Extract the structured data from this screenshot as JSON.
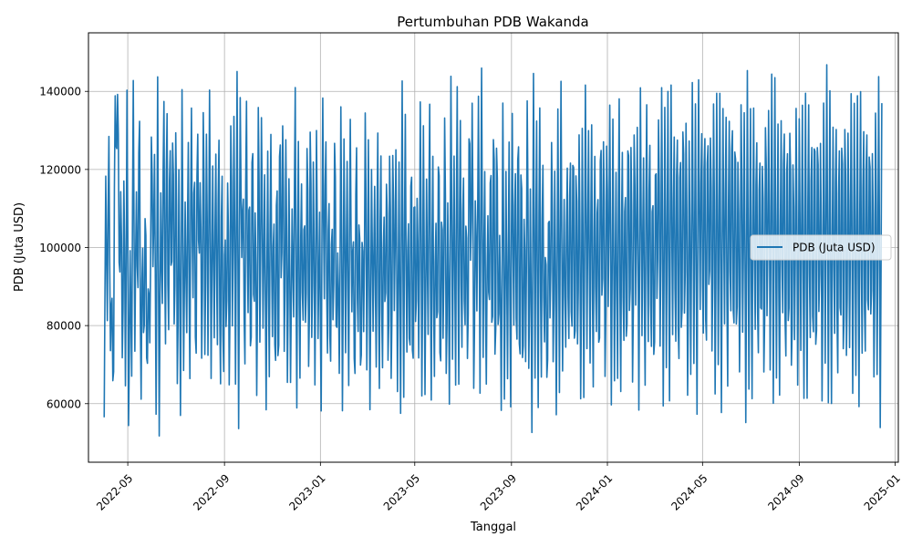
{
  "chart_data": {
    "type": "line",
    "title": "Pertumbuhan PDB Wakanda",
    "xlabel": "Tanggal",
    "ylabel": "PDB (Juta USD)",
    "x_range": [
      "2022-04-01",
      "2024-12-15"
    ],
    "xlim": [
      "2022-03-12",
      "2025-01-05"
    ],
    "ylim": [
      45000,
      155000
    ],
    "grid": true,
    "legend_position": "right",
    "x_ticks": [
      "2022-05",
      "2022-09",
      "2023-01",
      "2023-05",
      "2023-09",
      "2024-01",
      "2024-05",
      "2024-09",
      "2025-01"
    ],
    "y_ticks": [
      "60000",
      "80000",
      "100000",
      "120000",
      "140000"
    ],
    "series": [
      {
        "name": "PDB (Juta USD)",
        "color": "#1f77b4",
        "frequency": "daily",
        "start": "2022-04-01",
        "values": [
          56500,
          119500,
          78000,
          134000,
          71000,
          93000,
          52000,
          144000,
          119000,
          146000,
          82000,
          122000,
          62000,
          125500,
          57500,
          147000,
          50000,
          100000,
          66000,
          146000,
          70000,
          118000,
          81000,
          148000,
          50000,
          109000,
          67000,
          120000,
          59000,
          96000,
          72000,
          136000,
          91000,
          126000,
          55000,
          144000,
          50000,
          116000,
          80000,
          147000,
          63000,
          149000,
          64000,
          138000,
          81000,
          140000,
          66000,
          142000,
          53000,
          128000,
          51000,
          145000,
          67000,
          112000,
          76000,
          132000,
          58000,
          144000,
          79000,
          131000,
          54000,
          142000,
          89000,
          124000,
          60000,
          148000,
          62000,
          136000,
          68000,
          143000,
          66000,
          122000,
          74000,
          129000,
          67000,
          140000,
          51000,
          134000,
          55000,
          113000,
          70000,
          128000,
          52000,
          144000,
          72000,
          139000,
          61000,
          147000,
          53000,
          140000,
          96000,
          118000,
          59000,
          149000,
          74000,
          125000,
          56000,
          143000,
          73000,
          117000,
          52000,
          148000,
          68000,
          138000,
          77000,
          119000,
          57000,
          128000,
          61000,
          136000,
          71000,
          116000,
          56000,
          133000,
          51000,
          145000,
          79000,
          142000,
          62000,
          136000,
          59000,
          121000,
          64000,
          110000,
          80000,
          147000,
          51000,
          137000,
          56000,
          126000,
          72000,
          117000,
          69000,
          141000,
          53000,
          144000,
          67000,
          128000,
          60000,
          133000,
          76000,
          110000,
          54000,
          143000,
          81000,
          137000,
          63000,
          124000,
          58000,
          116000,
          71000,
          141000,
          67000,
          104000,
          63000,
          143000,
          53000,
          130000,
          73000,
          124000,
          60000,
          138000,
          80000,
          110000,
          52000,
          141000,
          66000,
          119000,
          56000,
          112000,
          72000,
          144000,
          60000,
          133000,
          55000,
          121000,
          78000,
          118000,
          64000,
          138000,
          53000,
          136000,
          58000,
          117000,
          75000,
          129000,
          56000,
          138000,
          54000,
          133000,
          79000,
          128000,
          61000,
          122000,
          55000,
          148000,
          54000,
          143000,
          66000,
          116000,
          59000,
          138000,
          52000,
          127000,
          70000,
          121000,
          64000,
          146000,
          55000,
          135000,
          61000,
          118000,
          75000,
          143000,
          53000,
          133000,
          58000,
          115000,
          68000,
          140000,
          52000,
          121000,
          67000,
          145000,
          57000,
          117000,
          56000,
          147000,
          71000,
          125000,
          60000,
          149000,
          55000,
          144000,
          63000,
          130000,
          69000,
          118000,
          58000,
          145000,
          87000,
          145000,
          54000,
          117000,
          82000,
          140000,
          62000,
          149000,
          68000,
          126000,
          58000,
          114000,
          76000,
          134000,
          61000,
          149000,
          52000,
          142000,
          69000,
          108000,
          53000,
          143000,
          58000,
          120000,
          65000,
          131000,
          52000,
          142000,
          72000,
          131000,
          59000,
          148000,
          50000,
          139000,
          55000,
          118000,
          63000,
          147000,
          62000,
          118000,
          51000,
          145000,
          64000,
          138000,
          50000,
          147000,
          55000,
          133000,
          67000,
          109000,
          53000,
          121000,
          73000,
          137000,
          61000,
          126000,
          52000,
          139000,
          62000,
          144000,
          66000,
          116000,
          68000,
          129000,
          65000,
          136000,
          62000,
          142000,
          57000,
          134000,
          63000,
          140000,
          51000,
          138000,
          57000,
          144000,
          74000,
          132000,
          66000,
          139000,
          55000,
          133000,
          68000,
          127000,
          56000,
          144000,
          72000,
          140000,
          53000,
          137000,
          79000,
          141000,
          56000,
          134000,
          65000,
          122000,
          60000,
          148000,
          52000,
          136000,
          64000,
          128000,
          59000,
          145000,
          68000,
          138000,
          53000,
          139000,
          80000,
          134000,
          56000,
          141000,
          76000,
          127000,
          57000,
          146000,
          65000,
          140000,
          61000,
          128000,
          54000,
          137000,
          75000,
          144000,
          64000,
          150000,
          52000,
          140000,
          68000,
          141000,
          57000,
          147000,
          71000,
          138000,
          63000,
          145000,
          52000,
          142000,
          60000,
          148000,
          69000,
          143000,
          51000,
          135000,
          63000,
          145000,
          70000,
          139000,
          52000,
          149000,
          77000,
          140000,
          64000,
          146000,
          56000,
          144000,
          75000,
          141000,
          60000,
          149000,
          52000,
          147000,
          66000,
          141000,
          57000,
          138000,
          76000,
          142000,
          53000,
          144000,
          69000,
          149000,
          60000,
          145000,
          63000,
          135000,
          56000,
          148000,
          71000,
          139000,
          52000,
          146000,
          62000,
          140000,
          54000,
          144000,
          69000,
          141000,
          57000,
          138000,
          66000,
          137000,
          51000,
          147000,
          72000,
          143000,
          62000,
          149000,
          58000,
          144000,
          64000,
          137000,
          54000,
          141000,
          72000,
          146000,
          53000,
          144000,
          61000,
          148000,
          52000,
          134000,
          68000,
          143000,
          59000,
          136000,
          73000,
          138000,
          57000,
          147000,
          51000,
          148000,
          64000,
          142000,
          58000,
          149000,
          53000,
          144000,
          71000,
          136000,
          51000,
          145000,
          66000,
          149000,
          60000,
          143000,
          55000,
          137000,
          69000,
          144000,
          52000,
          141000,
          63000,
          146000,
          54000,
          148000,
          58000,
          140000,
          67000,
          145000,
          59000,
          138000,
          66000,
          143000,
          52000,
          149000,
          62000,
          144000,
          56000,
          147000,
          65000,
          141000,
          68000,
          136000,
          55000,
          145000,
          60000,
          149000,
          51000,
          137000
        ],
        "note": "Values oscillate randomly between about 50000 and 150000 throughout the period."
      }
    ]
  }
}
